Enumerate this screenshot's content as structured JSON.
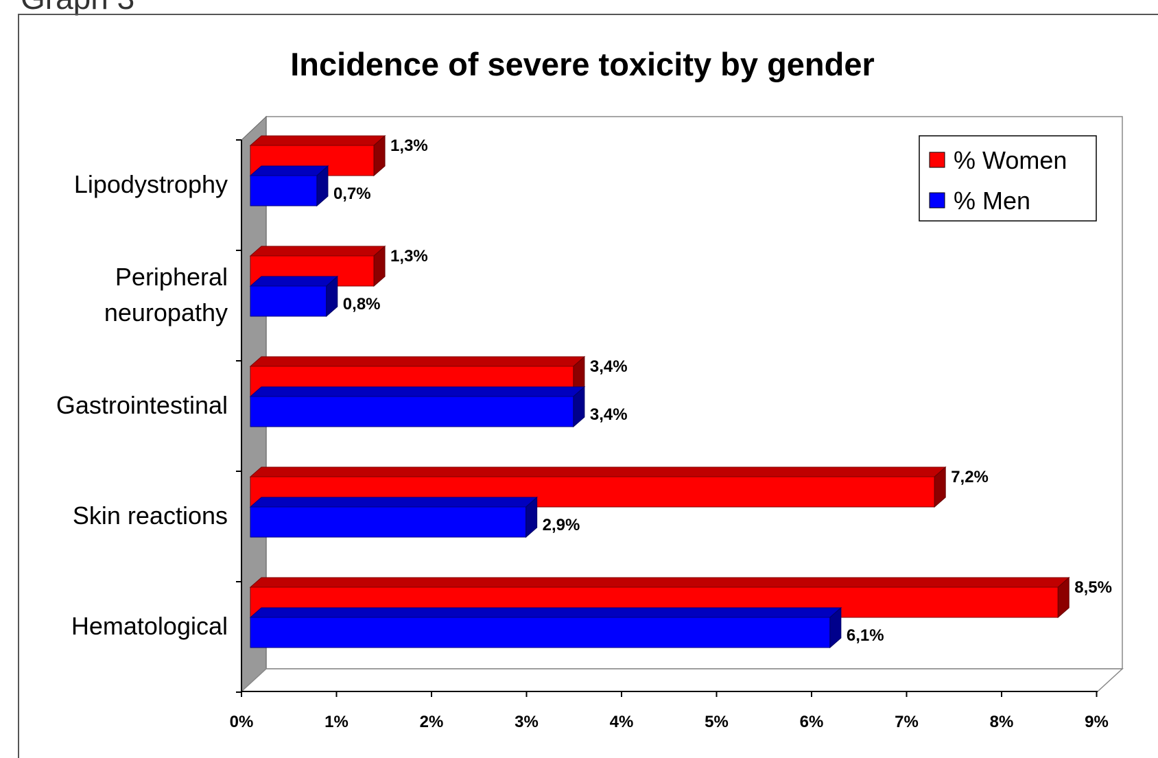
{
  "caption": "Graph 3",
  "chart_data": {
    "type": "bar",
    "orientation": "horizontal",
    "title": "Incidence of severe toxicity by gender",
    "categories": [
      [
        "Lipodystrophy"
      ],
      [
        "Peripheral",
        "neuropathy"
      ],
      [
        "Gastrointestinal"
      ],
      [
        "Skin reactions"
      ],
      [
        "Hematological"
      ]
    ],
    "series": [
      {
        "name": "% Women",
        "color": "#ff0000",
        "values": [
          1.3,
          1.3,
          3.4,
          7.2,
          8.5
        ],
        "labels": [
          "1,3%",
          "1,3%",
          "3,4%",
          "7,2%",
          "8,5%"
        ]
      },
      {
        "name": "% Men",
        "color": "#0000ff",
        "values": [
          0.7,
          0.8,
          3.4,
          2.9,
          6.1
        ],
        "labels": [
          "0,7%",
          "0,8%",
          "3,4%",
          "2,9%",
          "6,1%"
        ]
      }
    ],
    "xlim": [
      0,
      9
    ],
    "xticks": [
      "0%",
      "1%",
      "2%",
      "3%",
      "4%",
      "5%",
      "6%",
      "7%",
      "8%",
      "9%"
    ],
    "legend_position": "top-right",
    "grid": false
  }
}
